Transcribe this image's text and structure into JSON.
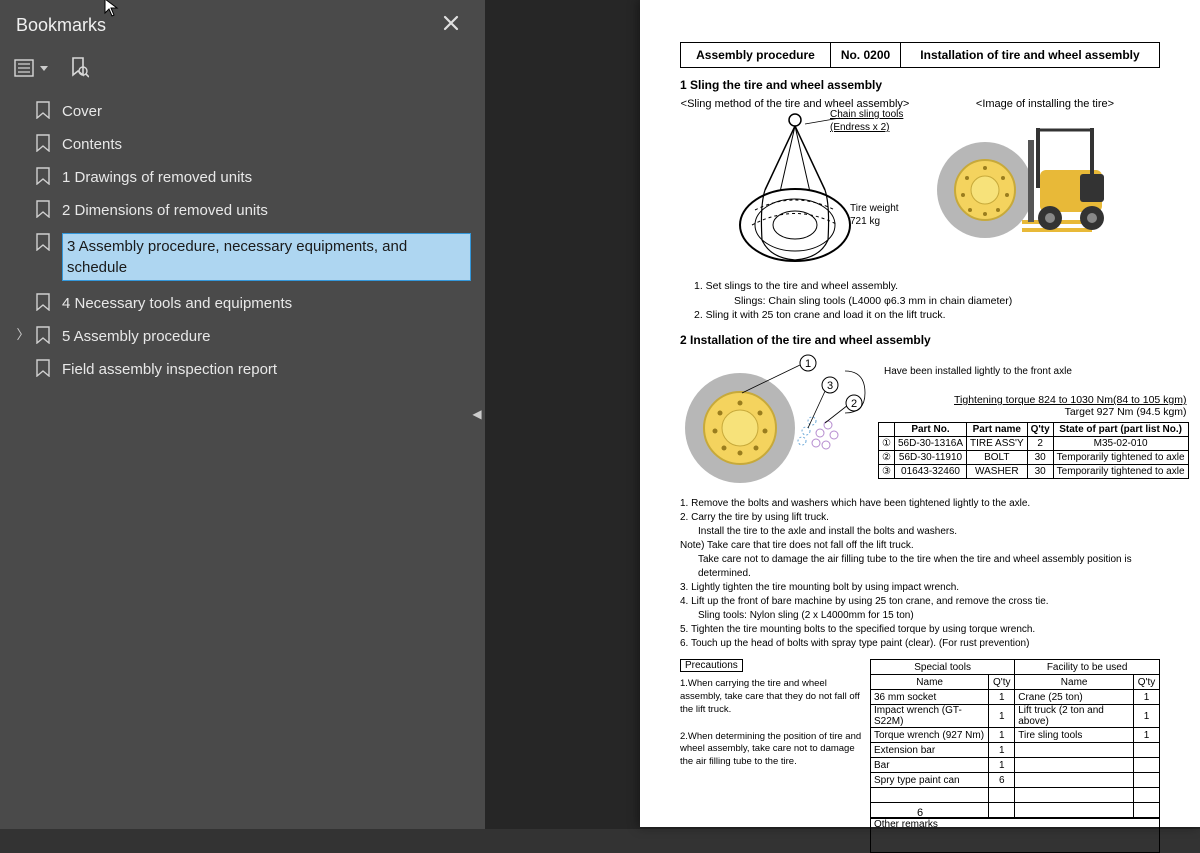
{
  "sidebar": {
    "title": "Bookmarks",
    "items": [
      {
        "label": "Cover"
      },
      {
        "label": "Contents"
      },
      {
        "label": "1 Drawings of removed units"
      },
      {
        "label": "2 Dimensions of removed units"
      },
      {
        "label": "3 Assembly procedure, necessary equipments, and schedule",
        "selected": true
      },
      {
        "label": "4 Necessary tools and equipments"
      },
      {
        "label": "5 Assembly procedure",
        "hasChildren": true
      },
      {
        "label": "Field assembly inspection report"
      }
    ]
  },
  "doc": {
    "header": {
      "c1": "Assembly procedure",
      "c2": "No. 0200",
      "c3": "Installation of tire and wheel assembly"
    },
    "sec1_title": "1  Sling the tire and wheel assembly",
    "sub_left": "<Sling method of the tire and wheel assembly>",
    "sub_right": "<Image of installing the tire>",
    "sling_label": "Chain sling tools\n(Endress x 2)",
    "tire_weight": "Tire weight\n721 kg",
    "step1": "1. Set slings to the tire and wheel assembly.",
    "step1a": "Slings: Chain sling tools (L4000 φ6.3 mm in chain diameter)",
    "step2": "2. Sling it with 25 ton crane and load it on the lift truck.",
    "sec2_title": "2  Installation of the tire and wheel assembly",
    "installed_note": "Have been installed lightly to the front axle",
    "torque1": "Tightening torque 824 to 1030 Nm(84 to 105 kgm)",
    "torque2": "Target 927 Nm (94.5 kgm)",
    "parts_head": [
      "",
      "Part No.",
      "Part name",
      "Q'ty",
      "State of part (part list No.)"
    ],
    "parts_rows": [
      [
        "①",
        "56D-30-1316A",
        "TIRE ASS'Y",
        "2",
        "M35-02-010"
      ],
      [
        "②",
        "56D-30-11910",
        "BOLT",
        "30",
        "Temporarily tightened to axle"
      ],
      [
        "③",
        "01643-32460",
        "WASHER",
        "30",
        "Temporarily tightened to axle"
      ]
    ],
    "instr_lines": [
      "1. Remove the bolts and washers which have been tightened lightly to the axle.",
      "2. Carry the tire by using lift truck.",
      "   Install the tire to the axle and install the bolts and washers.",
      "Note) Take care that tire does not fall off the lift truck.",
      "   Take care not to damage the air filling tube to the tire when the tire and wheel assembly position is determined.",
      "3. Lightly tighten the tire mounting bolt by using impact wrench.",
      "4. Lift up the front of bare machine by using 25 ton crane, and remove the cross tie.",
      "   Sling tools: Nylon sling (2 x L4000mm for 15 ton)",
      "5. Tighten the tire mounting bolts to the specified torque by using torque wrench.",
      "6. Touch up the head of bolts with spray type paint (clear). (For rust prevention)"
    ],
    "precautions_head": "Precautions",
    "precaution1": "1.When carrying the tire and wheel assembly, take care that they do not fall off the lift truck.",
    "precaution2": "2.When determining the position of tire and wheel assembly, take care not to damage the air filling tube to the tire.",
    "special_head": "Special tools",
    "facility_head": "Facility to be used",
    "name_head": "Name",
    "qty_head": "Q'ty",
    "special_rows": [
      [
        "36 mm socket",
        "1"
      ],
      [
        "Impact wrench (GT-S22M)",
        "1"
      ],
      [
        "Torque wrench (927 Nm)",
        "1"
      ],
      [
        "Extension bar",
        "1"
      ],
      [
        "Bar",
        "1"
      ],
      [
        "Spry type paint can",
        "6"
      ],
      [
        "",
        ""
      ],
      [
        "",
        ""
      ]
    ],
    "facility_rows": [
      [
        "Crane (25 ton)",
        "1"
      ],
      [
        "Lift truck (2 ton and above)",
        "1"
      ],
      [
        "Tire sling tools",
        "1"
      ],
      [
        "",
        ""
      ],
      [
        "",
        ""
      ],
      [
        "",
        ""
      ],
      [
        "",
        ""
      ],
      [
        "",
        ""
      ]
    ],
    "remarks_head": "Other remarks",
    "page_num": "6",
    "colors": {
      "tire_body": "#b7b7b7",
      "wheel_rim": "#f4d35e",
      "wheel_hub": "#f7e27a",
      "forklift_body": "#e8b938",
      "forklift_dark": "#333333",
      "circle_num": "#000000"
    }
  }
}
